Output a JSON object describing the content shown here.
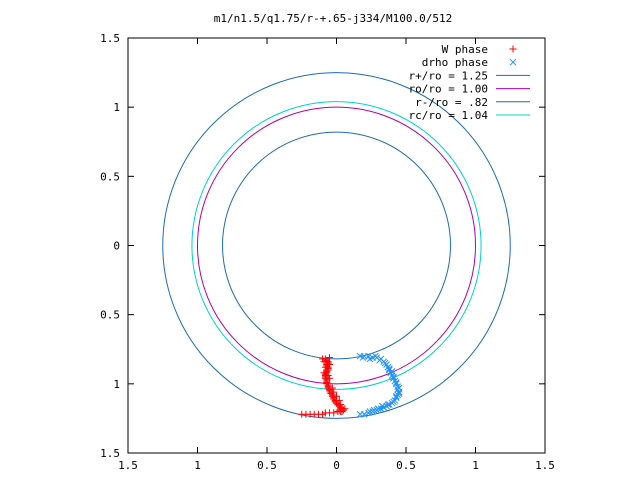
{
  "chart_data": {
    "type": "scatter",
    "title": "m1/n1.5/q1.75/r-+.65-j334/M100.0/512",
    "xlim": [
      -1.5,
      1.5
    ],
    "ylim": [
      -1.5,
      1.5
    ],
    "x_ticks": [
      -1.5,
      -1,
      -0.5,
      0,
      0.5,
      1,
      1.5
    ],
    "x_tick_labels": [
      "1.5",
      "1",
      "0.5",
      "0",
      "0.5",
      "1",
      "1.5"
    ],
    "y_ticks": [
      1.5,
      1,
      0.5,
      0,
      -0.5,
      -1,
      -1.5
    ],
    "y_tick_labels": [
      "1.5",
      "1",
      "0.5",
      "0",
      "0.5",
      "1",
      "1.5"
    ],
    "grid": false,
    "legend_position": "top-right",
    "circles": [
      {
        "label": "r+/ro = 1.25",
        "radius": 1.25,
        "color": "#1e6bb8"
      },
      {
        "label": "ro/ro = 1.00",
        "radius": 1.0,
        "color": "#b000b0"
      },
      {
        "label": "r-/ro =  .82",
        "radius": 0.82,
        "color": "#1e6bb8"
      },
      {
        "label": "rc/ro = 1.04",
        "radius": 1.04,
        "color": "#00d0d8"
      }
    ],
    "series": [
      {
        "name": "W phase",
        "marker": "+",
        "color": "#ff0000",
        "points": [
          [
            -0.25,
            -1.22
          ],
          [
            -0.22,
            -1.22
          ],
          [
            -0.19,
            -1.22
          ],
          [
            -0.16,
            -1.22
          ],
          [
            -0.13,
            -1.22
          ],
          [
            -0.1,
            -1.22
          ],
          [
            -0.08,
            -1.21
          ],
          [
            -0.05,
            -1.21
          ],
          [
            -0.02,
            -1.21
          ],
          [
            0.01,
            -1.2
          ],
          [
            0.03,
            -1.2
          ],
          [
            0.05,
            -1.19
          ],
          [
            0.04,
            -1.18
          ],
          [
            0.03,
            -1.17
          ],
          [
            0.02,
            -1.16
          ],
          [
            0.01,
            -1.15
          ],
          [
            0.0,
            -1.14
          ],
          [
            -0.01,
            -1.13
          ],
          [
            -0.01,
            -1.12
          ],
          [
            -0.02,
            -1.11
          ],
          [
            -0.02,
            -1.1
          ],
          [
            -0.03,
            -1.09
          ],
          [
            -0.03,
            -1.08
          ],
          [
            -0.04,
            -1.07
          ],
          [
            -0.04,
            -1.06
          ],
          [
            -0.05,
            -1.05
          ],
          [
            -0.05,
            -1.04
          ],
          [
            -0.06,
            -1.03
          ],
          [
            -0.06,
            -1.02
          ],
          [
            -0.06,
            -1.01
          ],
          [
            -0.07,
            -1.0
          ],
          [
            -0.07,
            -0.99
          ],
          [
            -0.07,
            -0.98
          ],
          [
            -0.07,
            -0.97
          ],
          [
            -0.08,
            -0.96
          ],
          [
            -0.08,
            -0.95
          ],
          [
            -0.08,
            -0.94
          ],
          [
            -0.08,
            -0.93
          ],
          [
            -0.07,
            -0.92
          ],
          [
            -0.07,
            -0.91
          ],
          [
            -0.07,
            -0.9
          ],
          [
            -0.06,
            -0.89
          ],
          [
            -0.06,
            -0.88
          ],
          [
            -0.07,
            -0.87
          ],
          [
            -0.07,
            -0.86
          ],
          [
            -0.06,
            -0.85
          ],
          [
            -0.06,
            -0.84
          ],
          [
            -0.07,
            -0.83
          ],
          [
            -0.08,
            -0.82
          ],
          [
            -0.1,
            -0.82
          ],
          [
            -0.05,
            -0.81
          ],
          [
            -0.09,
            -0.84
          ],
          [
            -0.05,
            -0.86
          ],
          [
            -0.08,
            -0.88
          ],
          [
            -0.06,
            -0.9
          ],
          [
            -0.09,
            -0.92
          ],
          [
            -0.06,
            -0.94
          ],
          [
            -0.05,
            -0.96
          ],
          [
            -0.03,
            -1.03
          ],
          [
            -0.02,
            -1.06
          ],
          [
            0.0,
            -1.09
          ],
          [
            0.02,
            -1.12
          ],
          [
            0.03,
            -1.15
          ],
          [
            0.06,
            -1.18
          ],
          [
            0.04,
            -1.2
          ],
          [
            0.02,
            -1.19
          ]
        ]
      },
      {
        "name": "drho phase",
        "marker": "x",
        "color": "#1e90ff",
        "points": [
          [
            0.17,
            -0.8
          ],
          [
            0.2,
            -0.8
          ],
          [
            0.23,
            -0.8
          ],
          [
            0.26,
            -0.81
          ],
          [
            0.29,
            -0.81
          ],
          [
            0.32,
            -0.82
          ],
          [
            0.34,
            -0.84
          ],
          [
            0.36,
            -0.86
          ],
          [
            0.37,
            -0.88
          ],
          [
            0.38,
            -0.9
          ],
          [
            0.39,
            -0.92
          ],
          [
            0.4,
            -0.94
          ],
          [
            0.41,
            -0.96
          ],
          [
            0.42,
            -0.98
          ],
          [
            0.43,
            -1.0
          ],
          [
            0.44,
            -1.02
          ],
          [
            0.44,
            -1.04
          ],
          [
            0.45,
            -1.06
          ],
          [
            0.44,
            -1.08
          ],
          [
            0.43,
            -1.1
          ],
          [
            0.42,
            -1.12
          ],
          [
            0.4,
            -1.14
          ],
          [
            0.38,
            -1.15
          ],
          [
            0.36,
            -1.16
          ],
          [
            0.34,
            -1.17
          ],
          [
            0.32,
            -1.18
          ],
          [
            0.29,
            -1.19
          ],
          [
            0.26,
            -1.2
          ],
          [
            0.23,
            -1.21
          ],
          [
            0.2,
            -1.22
          ],
          [
            0.17,
            -1.22
          ],
          [
            0.19,
            -0.81
          ],
          [
            0.24,
            -0.82
          ],
          [
            0.28,
            -0.8
          ],
          [
            0.31,
            -0.83
          ],
          [
            0.35,
            -0.85
          ],
          [
            0.38,
            -0.89
          ],
          [
            0.4,
            -0.91
          ],
          [
            0.41,
            -0.95
          ],
          [
            0.43,
            -0.99
          ],
          [
            0.45,
            -1.03
          ],
          [
            0.45,
            -1.07
          ],
          [
            0.43,
            -1.09
          ],
          [
            0.41,
            -1.13
          ],
          [
            0.37,
            -1.15
          ],
          [
            0.33,
            -1.16
          ],
          [
            0.3,
            -1.18
          ],
          [
            0.27,
            -1.19
          ],
          [
            0.24,
            -1.2
          ]
        ]
      }
    ]
  }
}
